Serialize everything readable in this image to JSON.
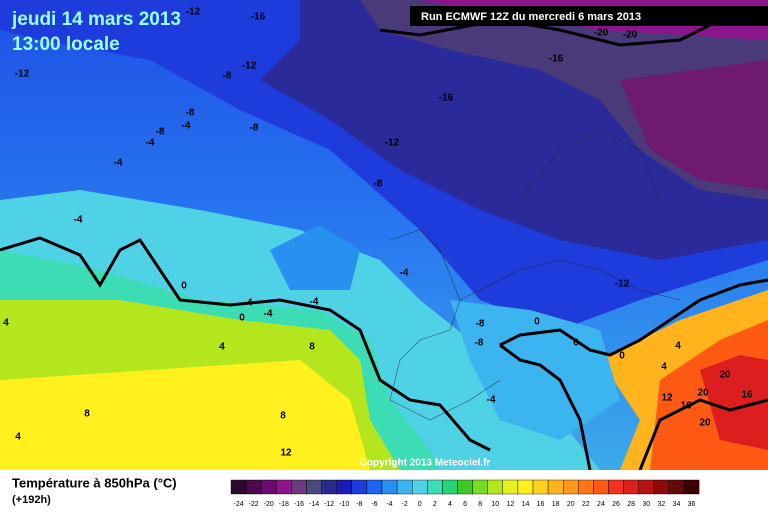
{
  "header": {
    "date": "jeudi 14 mars 2013",
    "time": "13:00 locale",
    "run": "Run ECMWF 12Z du mercredi 6 mars 2013"
  },
  "map": {
    "copyright": "Copyright 2013 Meteociel.fr",
    "contour_labels": [
      -12,
      -16,
      -12,
      -8,
      -12,
      -16,
      -16,
      -20,
      -20,
      -8,
      -8,
      -4,
      -4,
      -8,
      -12,
      -4,
      -8,
      -4,
      -4,
      -12,
      0,
      -4,
      0,
      -4,
      -4,
      4,
      -8,
      0,
      -8,
      0,
      0,
      4,
      8,
      4,
      4,
      8,
      8,
      -4,
      12,
      20,
      20,
      16,
      16,
      4,
      12,
      20
    ]
  },
  "legend": {
    "title": "Température à 850hPa (°C)",
    "lead": "(+192h)",
    "values": [
      -24,
      -22,
      -20,
      -18,
      -16,
      -14,
      -12,
      -10,
      -8,
      -6,
      -4,
      -2,
      0,
      2,
      4,
      6,
      8,
      10,
      12,
      14,
      16,
      18,
      20,
      22,
      24,
      26,
      28,
      30,
      32,
      34,
      36
    ],
    "colors": [
      "#2d0a2d",
      "#4b0a4b",
      "#6e0a6e",
      "#8c148c",
      "#6a3a7a",
      "#4a4a7a",
      "#2a2a8a",
      "#1a1ab4",
      "#1e3cdc",
      "#1e64f0",
      "#2890f0",
      "#3cb4f0",
      "#50d2e6",
      "#3cdcb4",
      "#28d278",
      "#3cc828",
      "#78dc1e",
      "#b4e61e",
      "#e6f01e",
      "#fff01e",
      "#ffd21e",
      "#ffb41e",
      "#ff961e",
      "#ff7814",
      "#ff5a14",
      "#f0321e",
      "#dc1e1e",
      "#b41414",
      "#8c0a0a",
      "#640a0a",
      "#3c0000"
    ]
  }
}
